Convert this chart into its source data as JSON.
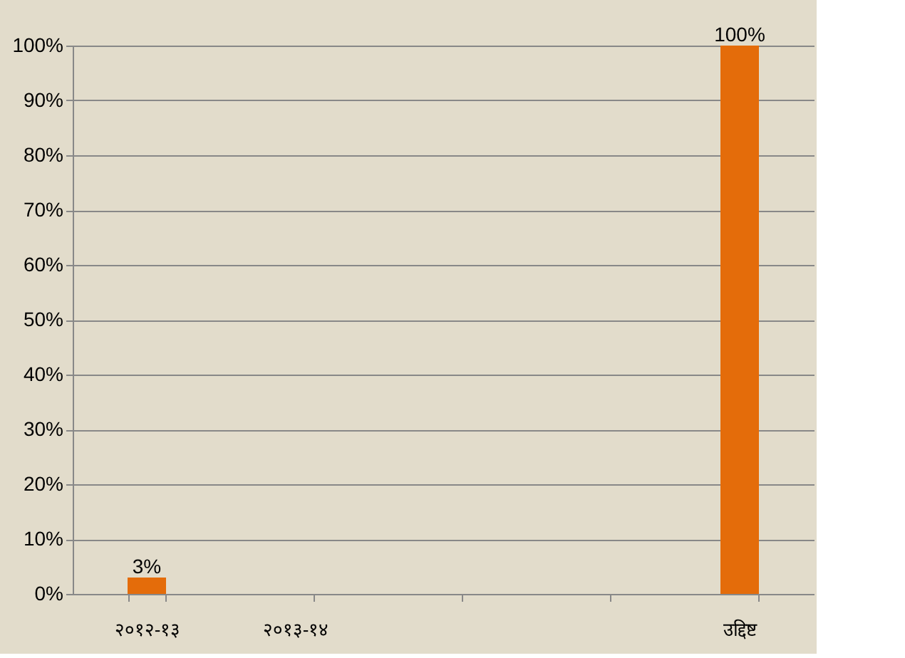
{
  "chart_data": {
    "type": "bar",
    "categories": [
      "२०१२-१३",
      "२०१३-१४",
      null,
      null,
      "उद्दिष्ट"
    ],
    "series": [
      {
        "color": "#e46c0a",
        "values": [
          3,
          null,
          null,
          null,
          100
        ]
      }
    ],
    "value_labels": [
      "3%",
      null,
      null,
      null,
      "100%"
    ],
    "ylim": [
      0,
      100
    ],
    "yticks": [
      {
        "value": 0,
        "label": "0%"
      },
      {
        "value": 10,
        "label": "10%"
      },
      {
        "value": 20,
        "label": "20%"
      },
      {
        "value": 30,
        "label": "30%"
      },
      {
        "value": 40,
        "label": "40%"
      },
      {
        "value": 50,
        "label": "50%"
      },
      {
        "value": 60,
        "label": "60%"
      },
      {
        "value": 70,
        "label": "70%"
      },
      {
        "value": 80,
        "label": "80%"
      },
      {
        "value": 90,
        "label": "90%"
      },
      {
        "value": 100,
        "label": "100%"
      }
    ],
    "grid": "y",
    "legend": false
  }
}
